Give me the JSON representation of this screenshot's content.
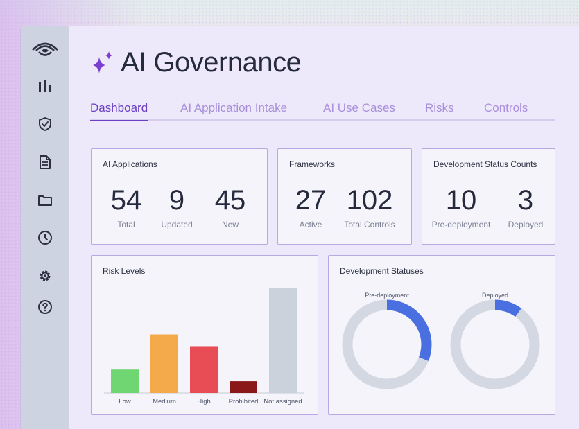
{
  "header": {
    "title": "AI Governance"
  },
  "tabs": [
    {
      "label": "Dashboard"
    },
    {
      "label": "AI Application Intake"
    },
    {
      "label": "AI Use Cases"
    },
    {
      "label": "Risks"
    },
    {
      "label": "Controls"
    }
  ],
  "sidebar": {
    "items": [
      {
        "icon": "logo-icon"
      },
      {
        "icon": "bar-chart-icon"
      },
      {
        "icon": "shield-check-icon"
      },
      {
        "icon": "document-icon"
      },
      {
        "icon": "folder-icon"
      },
      {
        "icon": "clock-icon"
      },
      {
        "icon": "gear-icon"
      },
      {
        "icon": "help-icon"
      }
    ]
  },
  "cards": {
    "ai_applications": {
      "title": "AI Applications",
      "stats": [
        {
          "value": "54",
          "label": "Total"
        },
        {
          "value": "9",
          "label": "Updated"
        },
        {
          "value": "45",
          "label": "New"
        }
      ]
    },
    "frameworks": {
      "title": "Frameworks",
      "stats": [
        {
          "value": "27",
          "label": "Active"
        },
        {
          "value": "102",
          "label": "Total Controls"
        }
      ]
    },
    "dev_status_counts": {
      "title": "Development Status Counts",
      "stats": [
        {
          "value": "10",
          "label": "Pre-deployment"
        },
        {
          "value": "3",
          "label": "Deployed"
        }
      ]
    },
    "risk_levels": {
      "title": "Risk Levels"
    },
    "dev_statuses": {
      "title": "Development Statuses"
    }
  },
  "colors": {
    "accent": "#6a3fc4",
    "donut_fill": "#4a6fe0",
    "donut_track": "#d3d8e2"
  },
  "chart_data": [
    {
      "type": "bar",
      "title": "Risk Levels",
      "categories": [
        "Low",
        "Medium",
        "High",
        "Prohibited",
        "Not assigned"
      ],
      "values": [
        2,
        5,
        4,
        1,
        9
      ],
      "colors": [
        "#6fd672",
        "#f4a94a",
        "#e84d55",
        "#8b1818",
        "#ccd2dc"
      ],
      "ylim": [
        0,
        9
      ]
    },
    {
      "type": "pie",
      "title": "Development Statuses",
      "donuts": [
        {
          "label": "Pre-deployment",
          "fraction": 0.31
        },
        {
          "label": "Deployed",
          "fraction": 0.1
        }
      ]
    }
  ]
}
